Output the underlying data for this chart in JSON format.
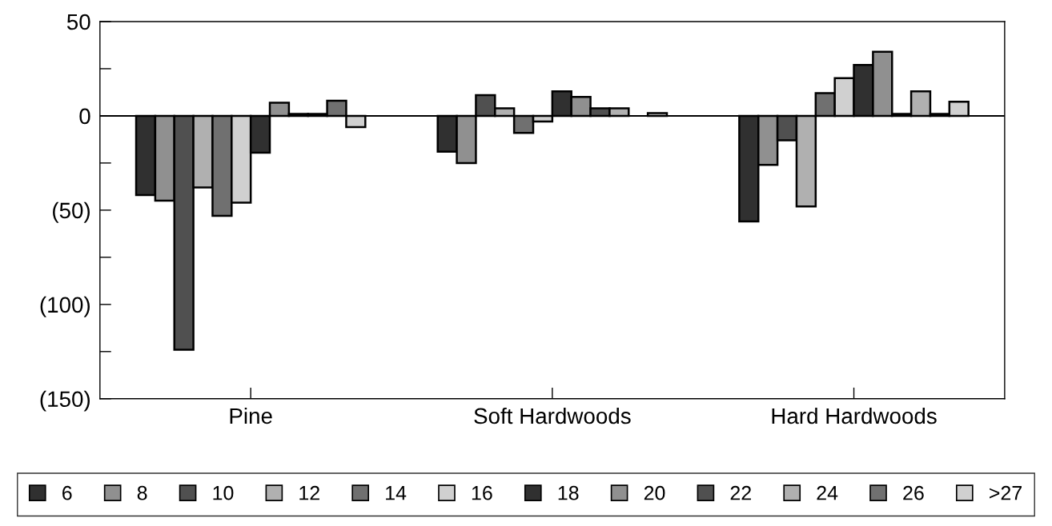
{
  "chart_data": {
    "type": "bar",
    "categories": [
      "Pine",
      "Soft Hardwoods",
      "Hard Hardwoods"
    ],
    "series": [
      {
        "name": "6",
        "color": "#303030",
        "values": [
          -42,
          -19,
          -56
        ]
      },
      {
        "name": "8",
        "color": "#909090",
        "values": [
          -45,
          -25,
          -26
        ]
      },
      {
        "name": "10",
        "color": "#505050",
        "values": [
          -124,
          11,
          -13
        ]
      },
      {
        "name": "12",
        "color": "#b0b0b0",
        "values": [
          -38,
          4,
          -48
        ]
      },
      {
        "name": "14",
        "color": "#707070",
        "values": [
          -53,
          -9,
          12
        ]
      },
      {
        "name": "16",
        "color": "#d0d0d0",
        "values": [
          -46,
          -3,
          20
        ]
      },
      {
        "name": "18",
        "color": "#303030",
        "values": [
          -19.5,
          13,
          27
        ]
      },
      {
        "name": "20",
        "color": "#909090",
        "values": [
          7,
          10,
          34
        ]
      },
      {
        "name": "22",
        "color": "#505050",
        "values": [
          1,
          4,
          1
        ]
      },
      {
        "name": "24",
        "color": "#b0b0b0",
        "values": [
          1,
          4,
          13
        ]
      },
      {
        "name": "26",
        "color": "#707070",
        "values": [
          8,
          null,
          1
        ]
      },
      {
        "name": ">27",
        "color": "#d0d0d0",
        "values": [
          -6,
          1.5,
          7.5
        ]
      }
    ],
    "ylim": [
      -150,
      50
    ],
    "yticks": [
      50,
      {
        "value": 25,
        "label": null
      },
      0,
      {
        "value": -25,
        "label": null
      },
      {
        "value": -50,
        "label": "(50)"
      },
      {
        "value": -75,
        "label": null
      },
      {
        "value": -100,
        "label": "(100)"
      },
      {
        "value": -125,
        "label": null
      },
      {
        "value": -150,
        "label": "(150)"
      }
    ],
    "ref_lines": [
      {
        "axis": "y",
        "value": 0,
        "color": "#000000"
      }
    ],
    "grid": false,
    "legend": "bottom"
  }
}
